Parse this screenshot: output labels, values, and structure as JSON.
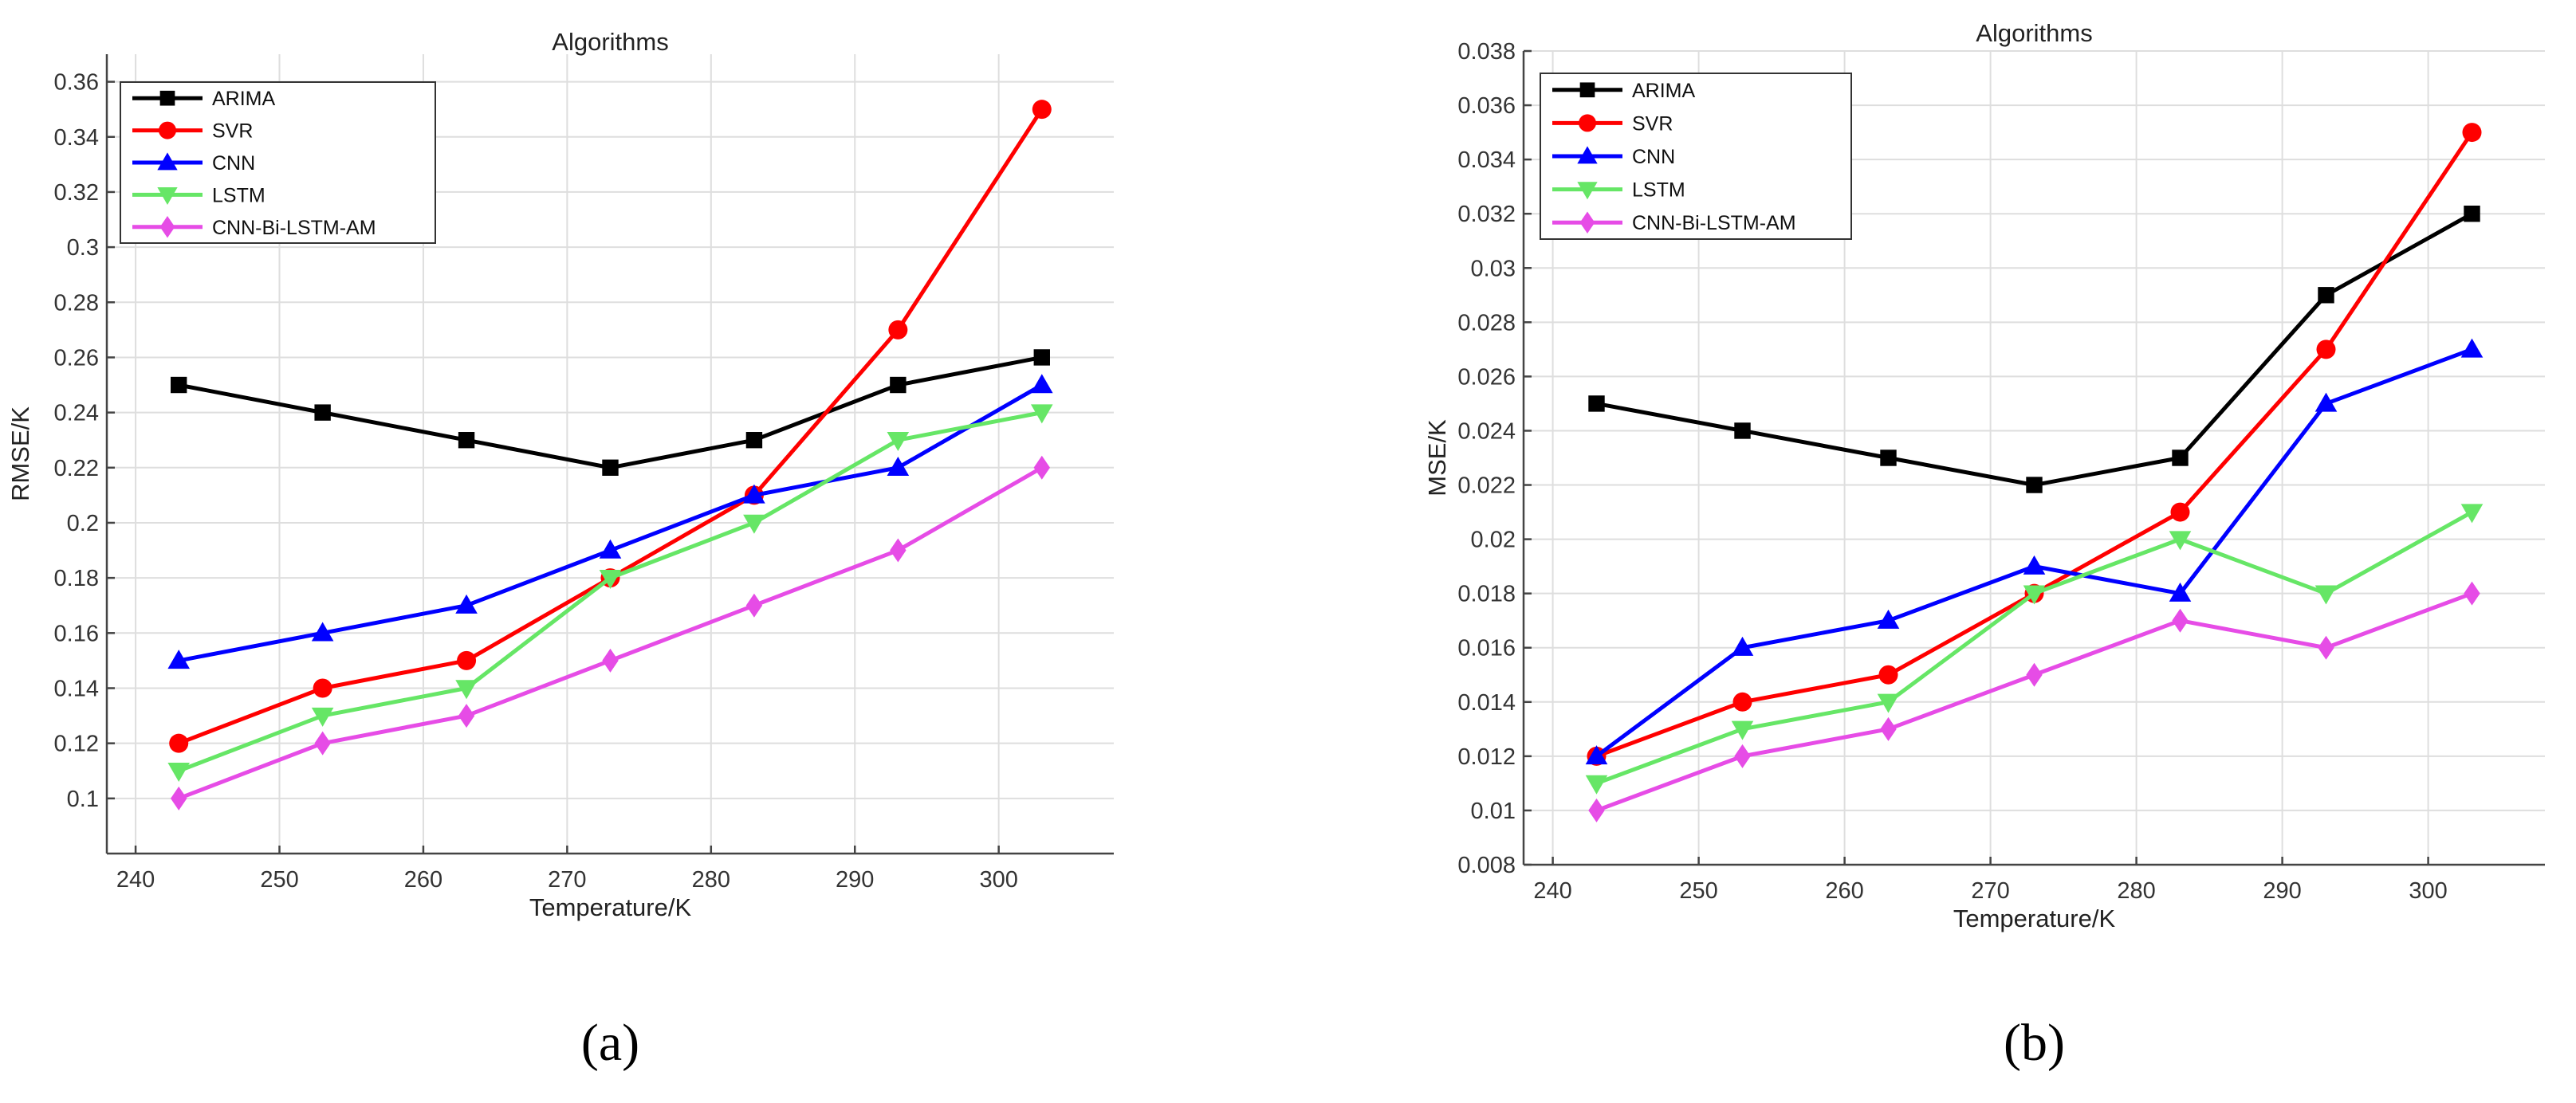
{
  "chart_data": [
    {
      "type": "line",
      "panel_label": "(a)",
      "title": "Algorithms",
      "xlabel": "Temperature/K",
      "ylabel": "RMSE/K",
      "x": [
        243,
        253,
        263,
        273,
        283,
        293,
        303
      ],
      "xlim": [
        238,
        308
      ],
      "ylim": [
        0.08,
        0.37
      ],
      "xticks": [
        240,
        250,
        260,
        270,
        280,
        290,
        300
      ],
      "yticks": [
        0.1,
        0.12,
        0.14,
        0.16,
        0.18,
        0.2,
        0.22,
        0.24,
        0.26,
        0.28,
        0.3,
        0.32,
        0.34,
        0.36
      ],
      "ytick_labels": [
        "0.1",
        "0.12",
        "0.14",
        "0.16",
        "0.18",
        "0.2",
        "0.22",
        "0.24",
        "0.26",
        "0.28",
        "0.3",
        "0.32",
        "0.34",
        "0.36"
      ],
      "grid": true,
      "legend_position": "top-left",
      "series": [
        {
          "name": "ARIMA",
          "color": "#000000",
          "marker": "square",
          "values": [
            0.25,
            0.24,
            0.23,
            0.22,
            0.23,
            0.25,
            0.26
          ]
        },
        {
          "name": "SVR",
          "color": "#ff0000",
          "marker": "circle",
          "values": [
            0.12,
            0.14,
            0.15,
            0.18,
            0.21,
            0.27,
            0.35
          ]
        },
        {
          "name": "CNN",
          "color": "#0000ff",
          "marker": "triangle-up",
          "values": [
            0.15,
            0.16,
            0.17,
            0.19,
            0.21,
            0.22,
            0.25
          ]
        },
        {
          "name": "LSTM",
          "color": "#66e666",
          "marker": "triangle-down",
          "values": [
            0.11,
            0.13,
            0.14,
            0.18,
            0.2,
            0.23,
            0.24
          ]
        },
        {
          "name": "CNN-Bi-LSTM-AM",
          "color": "#e64ce6",
          "marker": "diamond",
          "values": [
            0.1,
            0.12,
            0.13,
            0.15,
            0.17,
            0.19,
            0.22
          ]
        }
      ]
    },
    {
      "type": "line",
      "panel_label": "(b)",
      "title": "Algorithms",
      "xlabel": "Temperature/K",
      "ylabel": "MSE/K",
      "x": [
        243,
        253,
        263,
        273,
        283,
        293,
        303
      ],
      "xlim": [
        238,
        308
      ],
      "ylim": [
        0.008,
        0.038
      ],
      "xticks": [
        240,
        250,
        260,
        270,
        280,
        290,
        300
      ],
      "yticks": [
        0.008,
        0.01,
        0.012,
        0.014,
        0.016,
        0.018,
        0.02,
        0.022,
        0.024,
        0.026,
        0.028,
        0.03,
        0.032,
        0.034,
        0.036,
        0.038
      ],
      "ytick_labels": [
        "0.008",
        "0.01",
        "0.012",
        "0.014",
        "0.016",
        "0.018",
        "0.02",
        "0.022",
        "0.024",
        "0.026",
        "0.028",
        "0.03",
        "0.032",
        "0.034",
        "0.036",
        "0.038"
      ],
      "grid": true,
      "legend_position": "top-left",
      "series": [
        {
          "name": "ARIMA",
          "color": "#000000",
          "marker": "square",
          "values": [
            0.025,
            0.024,
            0.023,
            0.022,
            0.023,
            0.029,
            0.032
          ]
        },
        {
          "name": "SVR",
          "color": "#ff0000",
          "marker": "circle",
          "values": [
            0.012,
            0.014,
            0.015,
            0.018,
            0.021,
            0.027,
            0.035
          ]
        },
        {
          "name": "CNN",
          "color": "#0000ff",
          "marker": "triangle-up",
          "values": [
            0.012,
            0.016,
            0.017,
            0.019,
            0.018,
            0.025,
            0.027
          ]
        },
        {
          "name": "LSTM",
          "color": "#66e666",
          "marker": "triangle-down",
          "values": [
            0.011,
            0.013,
            0.014,
            0.018,
            0.02,
            0.018,
            0.021
          ]
        },
        {
          "name": "CNN-Bi-LSTM-AM",
          "color": "#e64ce6",
          "marker": "diamond",
          "values": [
            0.01,
            0.012,
            0.013,
            0.015,
            0.017,
            0.016,
            0.018
          ]
        }
      ]
    }
  ]
}
